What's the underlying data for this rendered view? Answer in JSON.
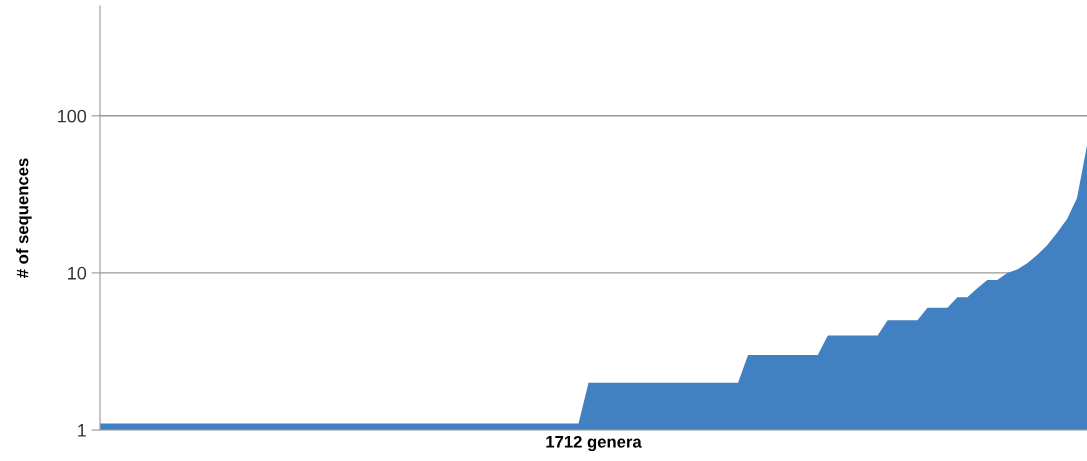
{
  "chart_data": {
    "type": "area",
    "xlabel": "1712 genera",
    "ylabel": "# of sequences",
    "log": true,
    "ylim": [
      1,
      500
    ],
    "yticks": [
      1,
      10,
      100
    ],
    "grid": "y",
    "tick_labels": "y",
    "color": "#4180c1",
    "categories": [
      null,
      null,
      null,
      null,
      null,
      null,
      null,
      null,
      null,
      null,
      null,
      null,
      null,
      null,
      null,
      null,
      null,
      null,
      null,
      null,
      null,
      null,
      null,
      null,
      null,
      null,
      null,
      null,
      null,
      null,
      null,
      null,
      null,
      null,
      null,
      null,
      null,
      null,
      null,
      null,
      null,
      null,
      null,
      null,
      null,
      null,
      null,
      null,
      null,
      null,
      null,
      null,
      null,
      null,
      null,
      null,
      null,
      null,
      null,
      null,
      null,
      null,
      null,
      null,
      null,
      null,
      null,
      null,
      null,
      null,
      null,
      null,
      null,
      null,
      null,
      null,
      null,
      null,
      null,
      null,
      null,
      null,
      null,
      null,
      null,
      null,
      null,
      null,
      null,
      null,
      null,
      null,
      null,
      null,
      null,
      null,
      null,
      null,
      null,
      null
    ],
    "values": [
      1.1,
      1.1,
      1.1,
      1.1,
      1.1,
      1.1,
      1.1,
      1.1,
      1.1,
      1.1,
      1.1,
      1.1,
      1.1,
      1.1,
      1.1,
      1.1,
      1.1,
      1.1,
      1.1,
      1.1,
      1.1,
      1.1,
      1.1,
      1.1,
      1.1,
      1.1,
      1.1,
      1.1,
      1.1,
      1.1,
      1.1,
      1.1,
      1.1,
      1.1,
      1.1,
      1.1,
      1.1,
      1.1,
      1.1,
      1.1,
      1.1,
      1.1,
      1.1,
      1.1,
      1.1,
      1.1,
      1.1,
      1.1,
      1.1,
      2,
      2,
      2,
      2,
      2,
      2,
      2,
      2,
      2,
      2,
      2,
      2,
      2,
      2,
      2,
      2,
      3,
      3,
      3,
      3,
      3,
      3,
      3,
      3,
      4,
      4,
      4,
      4,
      4,
      4,
      5,
      5,
      5,
      5,
      6,
      6,
      6,
      7,
      7,
      8,
      9,
      9,
      10,
      10.5,
      11.5,
      13,
      15,
      18,
      22,
      30,
      65
    ]
  }
}
